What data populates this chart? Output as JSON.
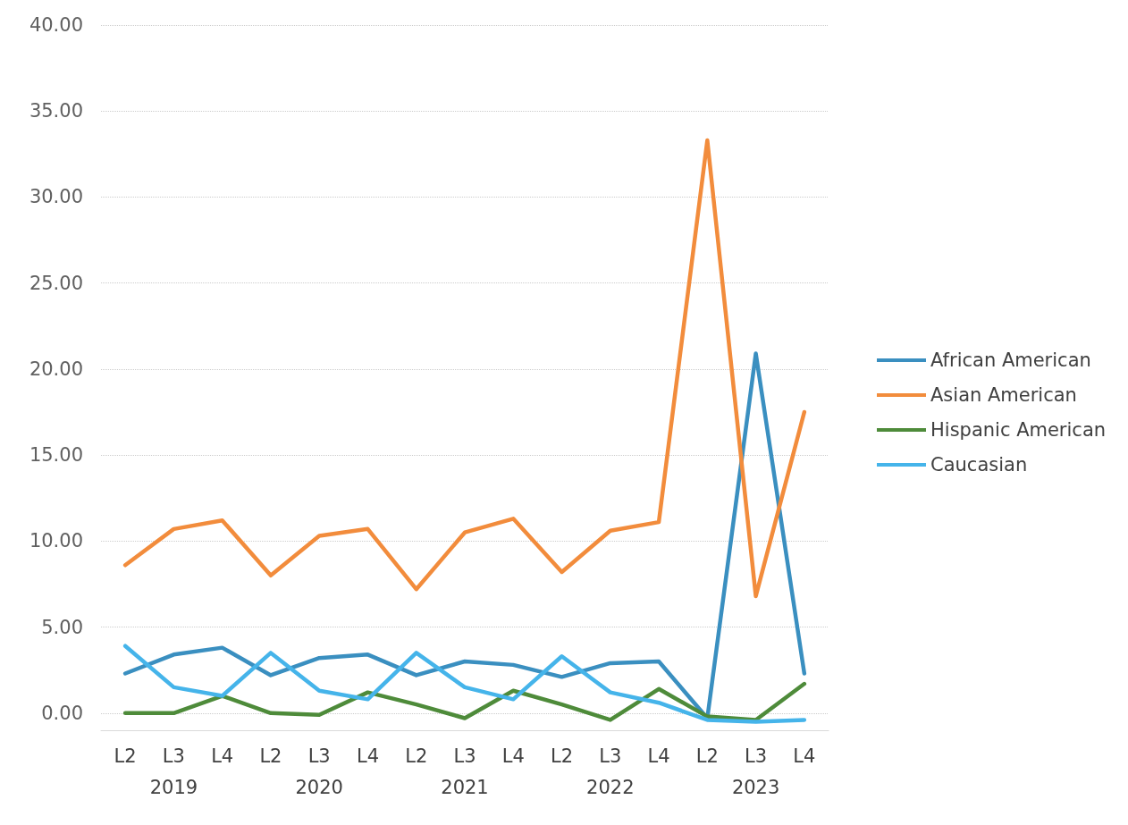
{
  "chart_data": {
    "type": "line",
    "categories": [
      "L2",
      "L3",
      "L4",
      "L2",
      "L3",
      "L4",
      "L2",
      "L3",
      "L4",
      "L2",
      "L3",
      "L4",
      "L2",
      "L3",
      "L4"
    ],
    "annotations": [
      "2019",
      "2020",
      "2021",
      "2022",
      "2023"
    ],
    "series": [
      {
        "name": "African American",
        "color": "#3a8fc0",
        "values": [
          2.3,
          3.4,
          3.8,
          2.2,
          3.2,
          3.4,
          2.2,
          3.0,
          2.8,
          2.1,
          2.9,
          3.0,
          -0.3,
          20.9,
          2.3
        ]
      },
      {
        "name": "Asian American",
        "color": "#f28c3c",
        "values": [
          8.6,
          10.7,
          11.2,
          8.0,
          10.3,
          10.7,
          7.2,
          10.5,
          11.3,
          8.2,
          10.6,
          11.1,
          33.3,
          6.8,
          17.5
        ]
      },
      {
        "name": "Hispanic American",
        "color": "#4e8b3a",
        "values": [
          0.0,
          0.0,
          1.0,
          0.0,
          -0.1,
          1.2,
          0.5,
          -0.3,
          1.3,
          0.5,
          -0.4,
          1.4,
          -0.2,
          -0.4,
          1.7
        ]
      },
      {
        "name": "Caucasian",
        "color": "#45b4ea",
        "values": [
          3.9,
          1.5,
          1.0,
          3.5,
          1.3,
          0.8,
          3.5,
          1.5,
          0.8,
          3.3,
          1.2,
          0.6,
          -0.4,
          -0.5,
          -0.4
        ]
      }
    ],
    "ylim": [
      -1,
      40
    ],
    "yticks": [
      {
        "value": 0,
        "label": "0.00"
      },
      {
        "value": 5,
        "label": "5.00"
      },
      {
        "value": 10,
        "label": "10.00"
      },
      {
        "value": 15,
        "label": "15.00"
      },
      {
        "value": 20,
        "label": "20.00"
      },
      {
        "value": 25,
        "label": "25.00"
      },
      {
        "value": 30,
        "label": "30.00"
      },
      {
        "value": 35,
        "label": "35.00"
      },
      {
        "value": 40,
        "label": "40.00"
      }
    ],
    "grid": "y",
    "legend": "right",
    "marker": "none"
  }
}
